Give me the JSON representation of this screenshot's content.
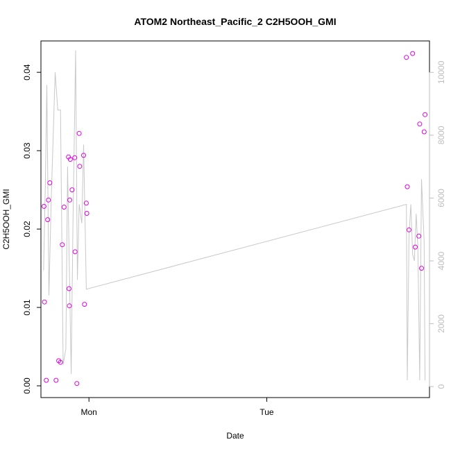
{
  "chart_data": {
    "type": "scatter",
    "title": "ATOM2 Northeast_Pacific_2 C2H5OOH_GMI",
    "xlabel": "Date",
    "ylabel": "C2H5OOH_GMI",
    "xlim": [
      -0.27,
      1.915
    ],
    "ylim": [
      -0.0015,
      0.044
    ],
    "y2lim": [
      -350,
      11000
    ],
    "x_ticks": [
      {
        "value": 0,
        "label": "Mon"
      },
      {
        "value": 1,
        "label": "Tue"
      }
    ],
    "y_ticks": [
      {
        "value": 0.0,
        "label": "0.00"
      },
      {
        "value": 0.01,
        "label": "0.01"
      },
      {
        "value": 0.02,
        "label": "0.02"
      },
      {
        "value": 0.03,
        "label": "0.03"
      },
      {
        "value": 0.04,
        "label": "0.04"
      }
    ],
    "y2_ticks": [
      {
        "value": 0,
        "label": "0"
      },
      {
        "value": 2000,
        "label": "2000"
      },
      {
        "value": 4000,
        "label": "4000"
      },
      {
        "value": 6000,
        "label": "6000"
      },
      {
        "value": 8000,
        "label": "8000"
      },
      {
        "value": 10000,
        "label": "10000"
      }
    ],
    "grid": false,
    "colors": {
      "points": "#e000e0",
      "line": "#c8c8c8",
      "axis": "#000000",
      "right_axis": "#bdbdbd"
    },
    "series": [
      {
        "type": "scatter",
        "axis": "left",
        "points": [
          {
            "x": -0.253,
            "y": 0.0229
          },
          {
            "x": -0.25,
            "y": 0.0107
          },
          {
            "x": -0.24,
            "y": 0.0007
          },
          {
            "x": -0.232,
            "y": 0.0212
          },
          {
            "x": -0.228,
            "y": 0.0237
          },
          {
            "x": -0.22,
            "y": 0.0259
          },
          {
            "x": -0.185,
            "y": 0.0007
          },
          {
            "x": -0.17,
            "y": 0.0032
          },
          {
            "x": -0.16,
            "y": 0.003
          },
          {
            "x": -0.15,
            "y": 0.018
          },
          {
            "x": -0.14,
            "y": 0.0228
          },
          {
            "x": -0.115,
            "y": 0.0292
          },
          {
            "x": -0.112,
            "y": 0.0124
          },
          {
            "x": -0.11,
            "y": 0.0102
          },
          {
            "x": -0.108,
            "y": 0.0237
          },
          {
            "x": -0.105,
            "y": 0.0289
          },
          {
            "x": -0.095,
            "y": 0.025
          },
          {
            "x": -0.08,
            "y": 0.0291
          },
          {
            "x": -0.078,
            "y": 0.0171
          },
          {
            "x": -0.068,
            "y": 0.0003
          },
          {
            "x": -0.055,
            "y": 0.0322
          },
          {
            "x": -0.052,
            "y": 0.028
          },
          {
            "x": -0.03,
            "y": 0.0294
          },
          {
            "x": -0.025,
            "y": 0.0104
          },
          {
            "x": -0.015,
            "y": 0.0233
          },
          {
            "x": -0.012,
            "y": 0.022
          },
          {
            "x": 1.785,
            "y": 0.0419
          },
          {
            "x": 1.79,
            "y": 0.0254
          },
          {
            "x": 1.8,
            "y": 0.0199
          },
          {
            "x": 1.82,
            "y": 0.0424
          },
          {
            "x": 1.835,
            "y": 0.0177
          },
          {
            "x": 1.855,
            "y": 0.0191
          },
          {
            "x": 1.86,
            "y": 0.0334
          },
          {
            "x": 1.87,
            "y": 0.015
          },
          {
            "x": 1.885,
            "y": 0.0324
          },
          {
            "x": 1.89,
            "y": 0.0346
          }
        ]
      },
      {
        "type": "line",
        "axis": "right",
        "points": [
          {
            "x": -0.255,
            "y": 3700
          },
          {
            "x": -0.245,
            "y": 6500
          },
          {
            "x": -0.237,
            "y": 9600
          },
          {
            "x": -0.225,
            "y": 2900
          },
          {
            "x": -0.212,
            "y": 6000
          },
          {
            "x": -0.19,
            "y": 10000
          },
          {
            "x": -0.175,
            "y": 8800
          },
          {
            "x": -0.16,
            "y": 8800
          },
          {
            "x": -0.145,
            "y": 700
          },
          {
            "x": -0.13,
            "y": 1200
          },
          {
            "x": -0.12,
            "y": 7000
          },
          {
            "x": -0.1,
            "y": 400
          },
          {
            "x": -0.09,
            "y": 5100
          },
          {
            "x": -0.075,
            "y": 10700
          },
          {
            "x": -0.065,
            "y": 3400
          },
          {
            "x": -0.055,
            "y": 5800
          },
          {
            "x": -0.04,
            "y": 5200
          },
          {
            "x": -0.03,
            "y": 7700
          },
          {
            "x": -0.015,
            "y": 3100
          },
          {
            "x": 1.785,
            "y": 5800
          },
          {
            "x": 1.79,
            "y": 200
          },
          {
            "x": 1.8,
            "y": 4800
          },
          {
            "x": 1.81,
            "y": 5800
          },
          {
            "x": 1.82,
            "y": 4200
          },
          {
            "x": 1.83,
            "y": 4000
          },
          {
            "x": 1.84,
            "y": 5500
          },
          {
            "x": 1.85,
            "y": 4400
          },
          {
            "x": 1.86,
            "y": 200
          },
          {
            "x": 1.87,
            "y": 6600
          },
          {
            "x": 1.885,
            "y": 4600
          },
          {
            "x": 1.89,
            "y": 200
          }
        ]
      }
    ]
  }
}
